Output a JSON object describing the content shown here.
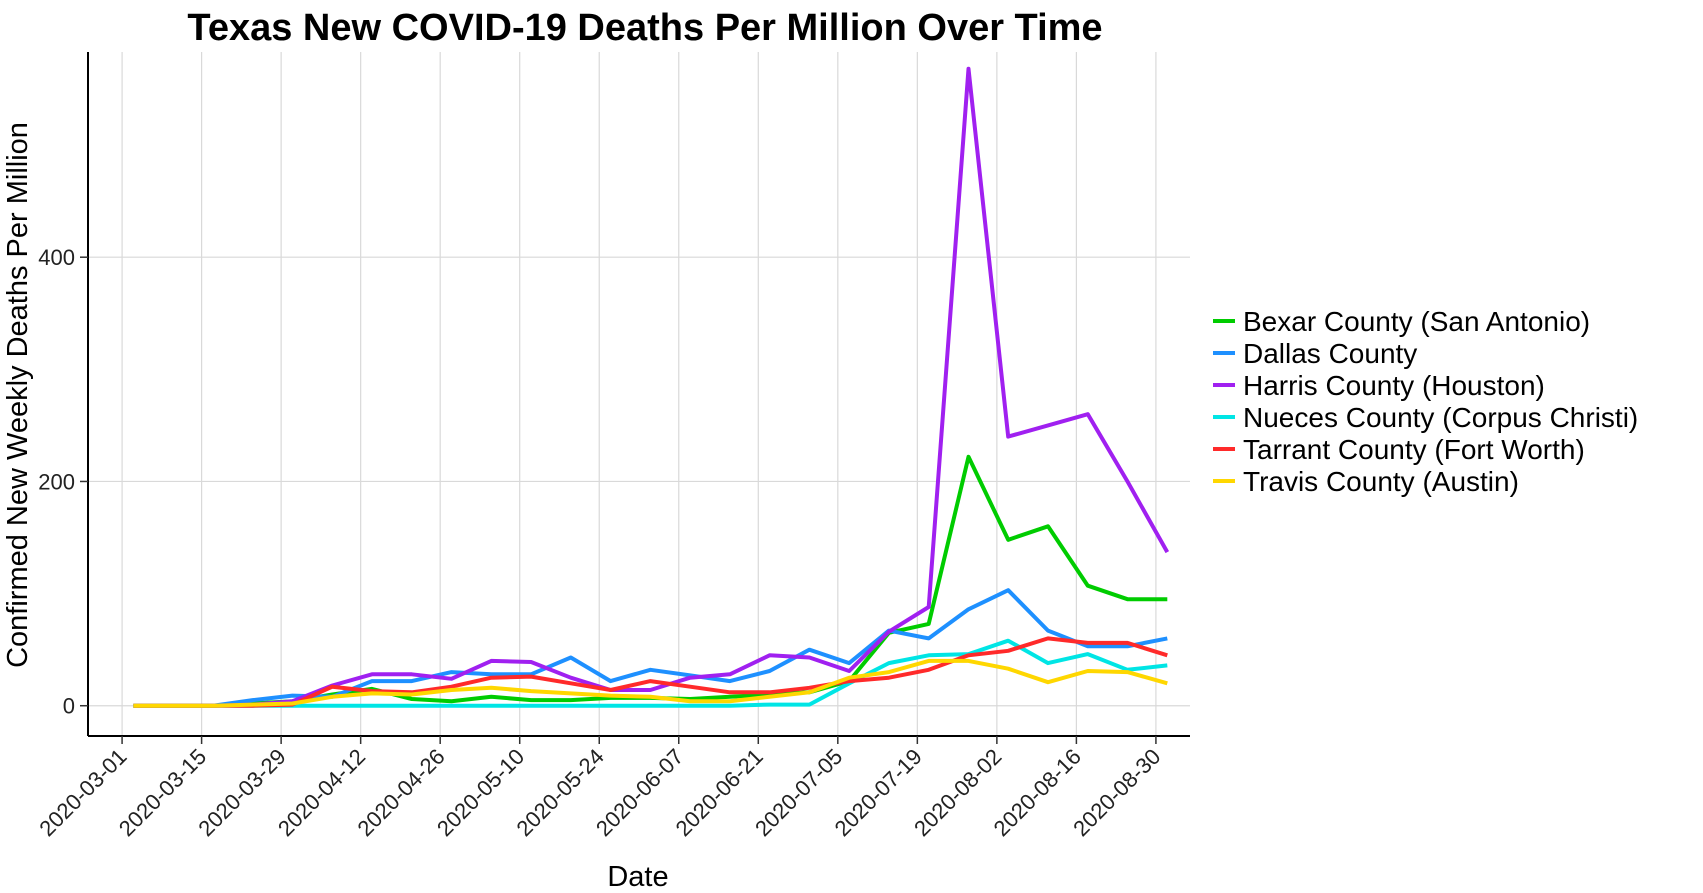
{
  "chart_data": {
    "type": "line",
    "title": "Texas New COVID-19 Deaths Per Million Over Time",
    "xlabel": "Date",
    "ylabel": "Confirmed New Weekly Deaths Per Million",
    "x_tick_labels": [
      "2020-03-01",
      "2020-03-15",
      "2020-03-29",
      "2020-04-12",
      "2020-04-26",
      "2020-05-10",
      "2020-05-24",
      "2020-06-07",
      "2020-06-21",
      "2020-07-05",
      "2020-07-19",
      "2020-08-02",
      "2020-08-16",
      "2020-08-30"
    ],
    "y_ticks": [
      0,
      200,
      400
    ],
    "ylim": [
      -27,
      583
    ],
    "xlim": [
      "2020-02-24",
      "2020-09-05"
    ],
    "grid": true,
    "legend_position": "right",
    "x": [
      "2020-03-03",
      "2020-03-10",
      "2020-03-17",
      "2020-03-24",
      "2020-03-31",
      "2020-04-07",
      "2020-04-14",
      "2020-04-21",
      "2020-04-28",
      "2020-05-05",
      "2020-05-12",
      "2020-05-19",
      "2020-05-26",
      "2020-06-02",
      "2020-06-09",
      "2020-06-16",
      "2020-06-23",
      "2020-06-30",
      "2020-07-07",
      "2020-07-14",
      "2020-07-21",
      "2020-07-28",
      "2020-08-04",
      "2020-08-11",
      "2020-08-18",
      "2020-08-25",
      "2020-09-01"
    ],
    "series": [
      {
        "name": "Bexar County (San Antonio)",
        "color": "#00cc00",
        "values": [
          0,
          0,
          0,
          2,
          4,
          10,
          15,
          6,
          4,
          8,
          5,
          5,
          7,
          7,
          6,
          8,
          10,
          12,
          22,
          65,
          73,
          222,
          148,
          160,
          107,
          95,
          95
        ]
      },
      {
        "name": "Dallas County",
        "color": "#1e90ff",
        "values": [
          0,
          0,
          0,
          5,
          9,
          8,
          22,
          22,
          30,
          28,
          28,
          43,
          22,
          32,
          27,
          22,
          31,
          50,
          38,
          67,
          60,
          86,
          103,
          67,
          53,
          53,
          60
        ]
      },
      {
        "name": "Harris County (Houston)",
        "color": "#a020f0",
        "values": [
          0,
          0,
          0,
          1,
          4,
          18,
          28,
          28,
          24,
          40,
          39,
          25,
          14,
          14,
          25,
          28,
          45,
          43,
          31,
          66,
          88,
          568,
          240,
          250,
          260,
          200,
          137
        ]
      },
      {
        "name": "Nueces County (Corpus Christi)",
        "color": "#00e5e5",
        "values": [
          0,
          0,
          0,
          0,
          0,
          0,
          0,
          0,
          0,
          0,
          0,
          0,
          0,
          0,
          0,
          0,
          1,
          1,
          20,
          38,
          45,
          46,
          58,
          38,
          46,
          32,
          36
        ]
      },
      {
        "name": "Tarrant County (Fort Worth)",
        "color": "#ff2a2a",
        "values": [
          0,
          0,
          0,
          0,
          1,
          17,
          13,
          12,
          17,
          25,
          26,
          20,
          14,
          22,
          17,
          12,
          12,
          16,
          22,
          25,
          32,
          45,
          49,
          60,
          56,
          56,
          45
        ]
      },
      {
        "name": "Travis County (Austin)",
        "color": "#ffd700",
        "values": [
          0,
          0,
          0,
          1,
          2,
          8,
          11,
          10,
          14,
          16,
          13,
          11,
          9,
          8,
          4,
          4,
          8,
          12,
          25,
          30,
          40,
          40,
          33,
          21,
          31,
          30,
          20
        ]
      }
    ]
  }
}
